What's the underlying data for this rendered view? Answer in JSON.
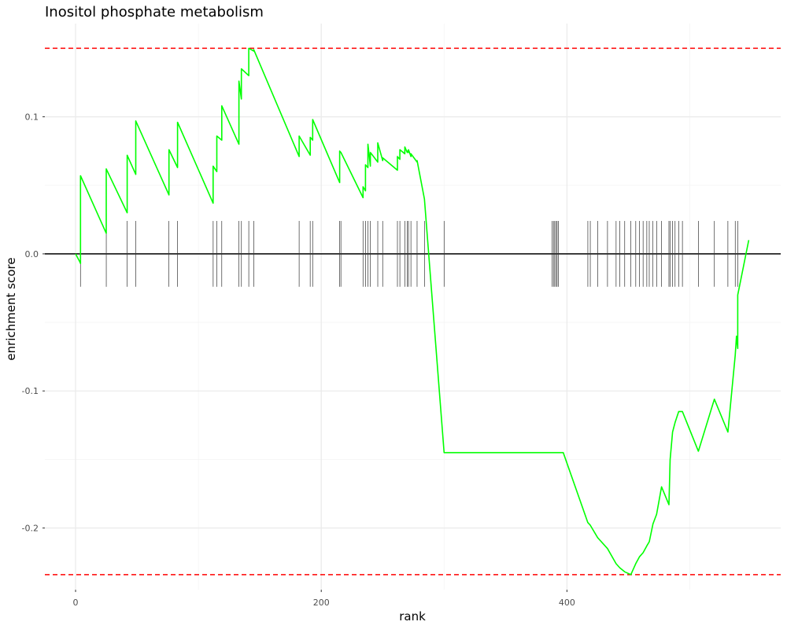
{
  "chart_data": {
    "type": "line",
    "title": "Inositol phosphate metabolism",
    "xlabel": "rank",
    "ylabel": "enrichment score",
    "xlim": [
      -25,
      574
    ],
    "ylim": [
      -0.245,
      0.168
    ],
    "x_ticks": [
      {
        "value": 0,
        "label": "0"
      },
      {
        "value": 200,
        "label": "200"
      },
      {
        "value": 400,
        "label": "400"
      }
    ],
    "y_ticks": [
      {
        "value": 0.1,
        "label": "0.1"
      },
      {
        "value": 0.0,
        "label": "0.0"
      },
      {
        "value": -0.1,
        "label": "-0.1"
      },
      {
        "value": -0.2,
        "label": "-0.2"
      }
    ],
    "grid": true,
    "colors": {
      "curve": "#00ff00",
      "threshold": "#ff0000",
      "baseline": "#000000",
      "hits": "#333333",
      "grid": "#ebebeb"
    },
    "reference_lines": {
      "max": 0.15,
      "min": -0.234,
      "zero": 0.0
    },
    "hits": [
      4,
      25,
      42,
      49,
      76,
      83,
      112,
      115,
      119,
      133,
      135,
      141,
      145,
      182,
      191,
      193,
      215,
      216,
      234,
      236,
      238,
      240,
      246,
      250,
      262,
      264,
      268,
      270,
      271,
      273,
      278,
      284,
      300,
      388,
      389,
      390,
      391,
      392,
      393,
      417,
      419,
      425,
      433,
      440,
      443,
      447,
      452,
      456,
      459,
      462,
      465,
      467,
      470,
      473,
      477,
      483,
      484,
      486,
      488,
      491,
      494,
      507,
      520,
      531,
      537,
      539
    ],
    "series": [
      {
        "x": [
          0,
          3,
          4,
          4,
          25,
          25,
          42,
          42,
          49,
          49,
          76,
          76,
          83,
          83,
          112,
          112,
          115,
          115,
          119,
          119,
          133,
          133,
          135,
          135,
          141,
          141,
          145,
          145,
          182,
          182,
          191,
          191,
          193,
          193,
          215,
          215,
          216,
          216,
          234,
          234,
          236,
          236,
          238,
          238,
          240,
          240,
          246,
          246,
          250,
          250,
          262,
          262,
          264,
          264,
          268,
          268,
          270,
          270,
          271,
          271,
          273,
          273,
          278,
          278,
          284,
          284,
          300,
          300,
          388,
          397,
          417,
          419,
          425,
          433,
          440,
          443,
          447,
          452,
          456,
          459,
          462,
          465,
          467,
          470,
          473,
          477,
          483,
          484,
          486,
          488,
          491,
          494,
          507,
          520,
          531,
          537,
          538,
          539,
          539,
          548
        ],
        "y": [
          0.0,
          -0.005,
          -0.007,
          0.057,
          0.015,
          0.062,
          0.03,
          0.072,
          0.058,
          0.097,
          0.043,
          0.076,
          0.063,
          0.096,
          0.037,
          0.064,
          0.06,
          0.086,
          0.083,
          0.108,
          0.08,
          0.126,
          0.113,
          0.135,
          0.13,
          0.15,
          0.148,
          0.149,
          0.071,
          0.086,
          0.072,
          0.085,
          0.083,
          0.098,
          0.052,
          0.075,
          0.074,
          0.074,
          0.041,
          0.049,
          0.046,
          0.065,
          0.063,
          0.08,
          0.064,
          0.074,
          0.067,
          0.081,
          0.068,
          0.07,
          0.061,
          0.071,
          0.069,
          0.076,
          0.073,
          0.078,
          0.074,
          0.075,
          0.074,
          0.076,
          0.071,
          0.073,
          0.067,
          0.068,
          0.04,
          0.04,
          -0.145,
          -0.145,
          -0.145,
          -0.145,
          -0.196,
          -0.198,
          -0.207,
          -0.215,
          -0.226,
          -0.229,
          -0.232,
          -0.234,
          -0.226,
          -0.221,
          -0.218,
          -0.213,
          -0.21,
          -0.197,
          -0.19,
          -0.17,
          -0.183,
          -0.15,
          -0.13,
          -0.123,
          -0.115,
          -0.115,
          -0.144,
          -0.106,
          -0.13,
          -0.074,
          -0.06,
          -0.069,
          -0.03,
          0.01
        ]
      }
    ]
  }
}
